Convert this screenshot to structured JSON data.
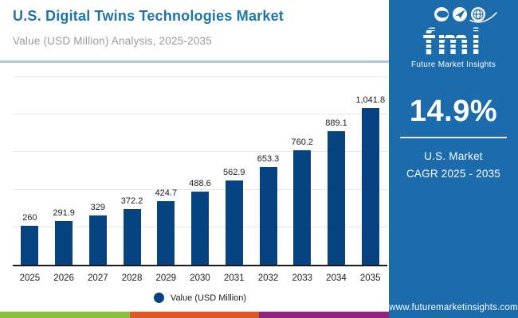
{
  "header": {
    "title": "U.S. Digital Twins Technologies Market",
    "subtitle": "Value (USD Million) Analysis, 2025-2035"
  },
  "chart_data": {
    "type": "bar",
    "title": "U.S. Digital Twins Technologies Market",
    "xlabel": "",
    "ylabel": "Value (USD Million)",
    "categories": [
      "2025",
      "2026",
      "2027",
      "2028",
      "2029",
      "2030",
      "2031",
      "2032",
      "2033",
      "2034",
      "2035"
    ],
    "values": [
      260,
      291.9,
      329,
      372.2,
      424.7,
      488.6,
      562.9,
      653.3,
      760.2,
      889.1,
      1041.8
    ],
    "value_labels": [
      "260",
      "291.9",
      "329",
      "372.2",
      "424.7",
      "488.6",
      "562.9",
      "653.3",
      "760.2",
      "889.1",
      "1,041.8"
    ],
    "ylim": [
      0,
      1250
    ],
    "gridlines": [
      250,
      500,
      750,
      1000,
      1250
    ],
    "grid": true,
    "bar_color": "#084381",
    "legend": {
      "label": "Value (USD Million)",
      "position": "bottom",
      "marker_color": "#084381"
    }
  },
  "sidebar": {
    "background": "#1C6BAC",
    "logo": {
      "text": "fmi",
      "tagline": "Future Market Insights",
      "icons": [
        "us-map-icon",
        "paper-plane-icon",
        "globe-icon"
      ]
    },
    "cagr_value": "14.9%",
    "cagr_label_line1": "U.S. Market",
    "cagr_label_line2": "CAGR 2025 - 2035",
    "website": "www.futuremarketinsights.com"
  },
  "colors": {
    "title_accent": "#1C74AD",
    "header_rule": "#A9C7DE"
  },
  "footer_strip": {
    "colors": [
      "#8CBE41",
      "#DD5826",
      "#8E2580"
    ]
  }
}
